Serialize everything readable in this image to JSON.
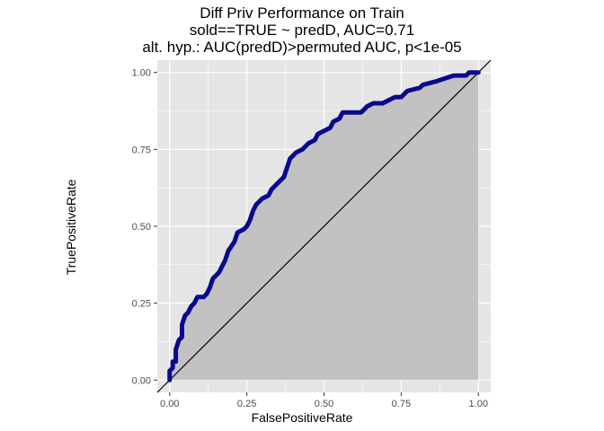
{
  "chart_data": {
    "type": "area",
    "title_lines": [
      "Diff Priv Performance on Train",
      "sold==TRUE ~ predD, AUC=0.71",
      "alt. hyp.: AUC(predD)>permuted AUC, p<1e-05"
    ],
    "xlabel": "FalsePositiveRate",
    "ylabel": "TruePositiveRate",
    "xlim": [
      -0.04,
      1.04
    ],
    "ylim": [
      -0.04,
      1.04
    ],
    "xticks": [
      "0.00",
      "0.25",
      "0.50",
      "0.75",
      "1.00"
    ],
    "yticks": [
      "0.00",
      "0.25",
      "0.50",
      "0.75",
      "1.00"
    ],
    "grid": true,
    "colors": {
      "panel": "#e5e5e5",
      "grid": "#ffffff",
      "area_fill": "#c2c2c2",
      "roc_line": "#0a0a8c",
      "diagonal": "#000000"
    },
    "series": [
      {
        "values": [
          [
            0.0,
            0.0
          ],
          [
            0.0,
            0.03
          ],
          [
            0.01,
            0.04
          ],
          [
            0.01,
            0.06
          ],
          [
            0.02,
            0.06
          ],
          [
            0.02,
            0.1
          ],
          [
            0.03,
            0.13
          ],
          [
            0.04,
            0.14
          ],
          [
            0.04,
            0.18
          ],
          [
            0.05,
            0.21
          ],
          [
            0.06,
            0.22
          ],
          [
            0.07,
            0.24
          ],
          [
            0.08,
            0.25
          ],
          [
            0.09,
            0.27
          ],
          [
            0.11,
            0.27
          ],
          [
            0.12,
            0.28
          ],
          [
            0.13,
            0.3
          ],
          [
            0.14,
            0.33
          ],
          [
            0.16,
            0.35
          ],
          [
            0.17,
            0.37
          ],
          [
            0.18,
            0.39
          ],
          [
            0.19,
            0.42
          ],
          [
            0.21,
            0.45
          ],
          [
            0.22,
            0.48
          ],
          [
            0.24,
            0.49
          ],
          [
            0.25,
            0.5
          ],
          [
            0.26,
            0.52
          ],
          [
            0.27,
            0.55
          ],
          [
            0.28,
            0.57
          ],
          [
            0.3,
            0.59
          ],
          [
            0.32,
            0.6
          ],
          [
            0.33,
            0.62
          ],
          [
            0.35,
            0.64
          ],
          [
            0.37,
            0.66
          ],
          [
            0.38,
            0.69
          ],
          [
            0.39,
            0.72
          ],
          [
            0.41,
            0.74
          ],
          [
            0.43,
            0.75
          ],
          [
            0.45,
            0.77
          ],
          [
            0.47,
            0.78
          ],
          [
            0.48,
            0.8
          ],
          [
            0.5,
            0.81
          ],
          [
            0.52,
            0.82
          ],
          [
            0.53,
            0.84
          ],
          [
            0.55,
            0.85
          ],
          [
            0.56,
            0.87
          ],
          [
            0.58,
            0.87
          ],
          [
            0.62,
            0.87
          ],
          [
            0.63,
            0.88
          ],
          [
            0.64,
            0.89
          ],
          [
            0.66,
            0.9
          ],
          [
            0.69,
            0.9
          ],
          [
            0.71,
            0.91
          ],
          [
            0.73,
            0.92
          ],
          [
            0.75,
            0.92
          ],
          [
            0.77,
            0.94
          ],
          [
            0.81,
            0.95
          ],
          [
            0.82,
            0.96
          ],
          [
            0.86,
            0.97
          ],
          [
            0.89,
            0.98
          ],
          [
            0.92,
            0.99
          ],
          [
            0.96,
            0.99
          ],
          [
            0.97,
            1.0
          ],
          [
            1.0,
            1.0
          ]
        ]
      }
    ],
    "reference_line": [
      [
        -0.04,
        -0.04
      ],
      [
        1.04,
        1.04
      ]
    ]
  }
}
